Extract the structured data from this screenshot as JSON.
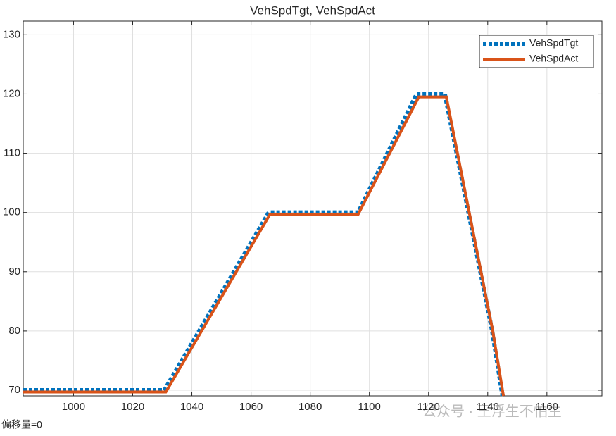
{
  "chart_data": {
    "type": "line",
    "title": "VehSpdTgt, VehSpdAct",
    "xlim": [
      983,
      1178.6
    ],
    "xticks": [
      1000,
      1020,
      1040,
      1060,
      1080,
      1100,
      1120,
      1140,
      1160
    ],
    "ylim": [
      69.05,
      132.3
    ],
    "yticks": [
      70,
      80,
      90,
      100,
      110,
      120,
      130
    ],
    "grid": true,
    "legend": "top-right",
    "series": [
      {
        "name": "VehSpdTgt",
        "color": "#0072bd",
        "style": "dotted",
        "x": [
          983,
          1030.7,
          1066,
          1096.2,
          1116,
          1125.5,
          1141.5,
          1145
        ],
        "values": [
          70,
          70,
          100,
          100,
          120,
          120,
          80,
          69.05
        ]
      },
      {
        "name": "VehSpdAct",
        "color": "#d95319",
        "style": "solid",
        "x": [
          983,
          1031.2,
          1066.4,
          1096.2,
          1116.7,
          1126,
          1141.7,
          1145.3
        ],
        "values": [
          69.7,
          69.7,
          99.7,
          99.7,
          119.5,
          119.5,
          80,
          69.05
        ]
      }
    ]
  },
  "footer": "偏移量=0",
  "watermark": "公众号 · 王浮生不怕生"
}
